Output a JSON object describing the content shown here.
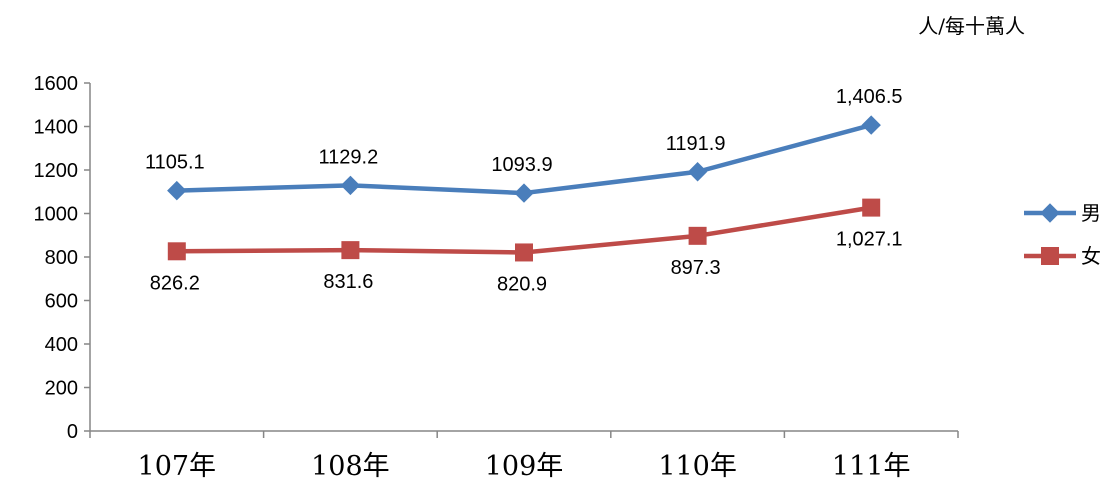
{
  "chart_data": {
    "type": "line",
    "unit_label": "人/每十萬人",
    "categories": [
      "107年",
      "108年",
      "109年",
      "110年",
      "111年"
    ],
    "ylim": [
      0,
      1600
    ],
    "yticks": [
      0,
      200,
      400,
      600,
      800,
      1000,
      1200,
      1400,
      1600
    ],
    "grid": false,
    "legend_position": "right",
    "series": [
      {
        "name": "男",
        "color": "#4a7ebb",
        "marker": "diamond",
        "values": [
          1105.1,
          1129.2,
          1093.9,
          1191.9,
          1406.5
        ],
        "labels": [
          "1105.1",
          "1129.2",
          "1093.9",
          "1191.9",
          "1,406.5"
        ],
        "label_position": "above"
      },
      {
        "name": "女",
        "color": "#be4b48",
        "marker": "square",
        "values": [
          826.2,
          831.6,
          820.9,
          897.3,
          1027.1
        ],
        "labels": [
          "826.2",
          "831.6",
          "820.9",
          "897.3",
          "1,027.1"
        ],
        "label_position": "below"
      }
    ]
  }
}
